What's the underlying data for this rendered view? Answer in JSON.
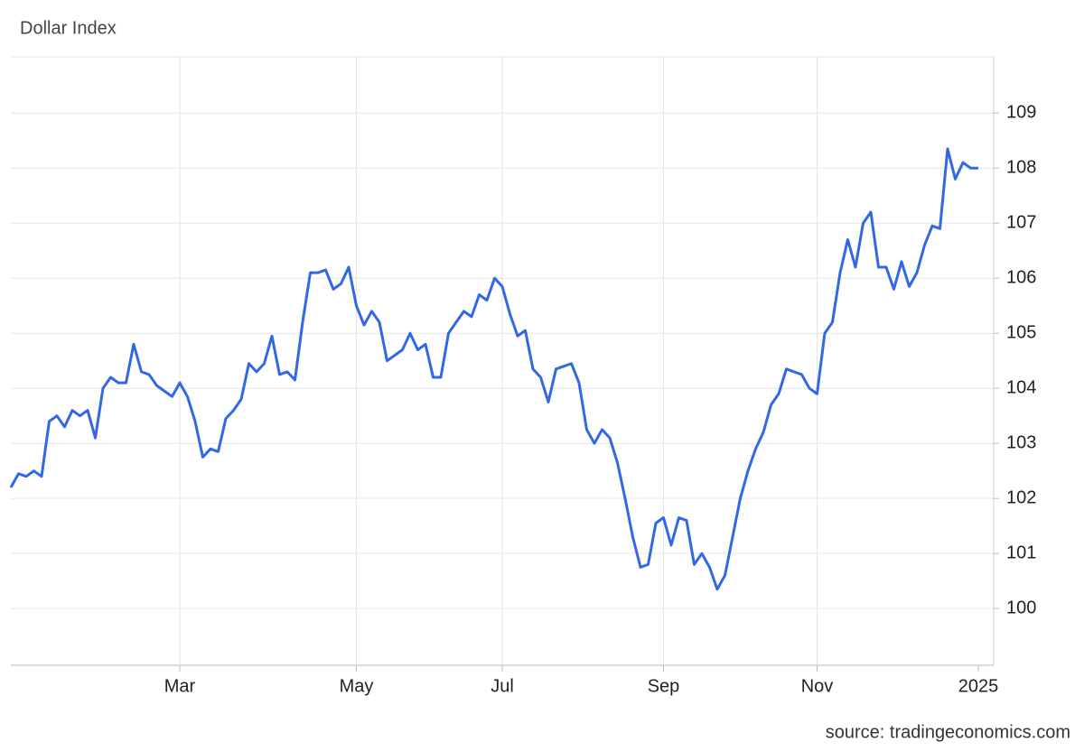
{
  "chart_data": {
    "type": "line",
    "title": "Dollar Index",
    "source": "source: tradingeconomics.com",
    "categories": [
      null,
      null,
      null,
      null,
      null,
      null,
      null,
      null,
      null,
      null,
      null,
      null,
      null,
      null,
      null,
      null,
      null,
      null,
      null,
      null,
      null,
      null,
      "Mar",
      null,
      null,
      null,
      null,
      null,
      null,
      null,
      null,
      null,
      null,
      null,
      null,
      null,
      null,
      null,
      null,
      null,
      null,
      null,
      null,
      null,
      null,
      "May",
      null,
      null,
      null,
      null,
      null,
      null,
      null,
      null,
      null,
      null,
      null,
      null,
      null,
      null,
      null,
      null,
      null,
      null,
      "Jul",
      null,
      null,
      null,
      null,
      null,
      null,
      null,
      null,
      null,
      null,
      null,
      null,
      null,
      null,
      null,
      null,
      null,
      null,
      null,
      null,
      "Sep",
      null,
      null,
      null,
      null,
      null,
      null,
      null,
      null,
      null,
      null,
      null,
      null,
      null,
      null,
      null,
      null,
      null,
      null,
      null,
      "Nov",
      null,
      null,
      null,
      null,
      null,
      null,
      null,
      null,
      null,
      null,
      null,
      null,
      null,
      null,
      null,
      null,
      null,
      null,
      null,
      null,
      "2025"
    ],
    "series": [
      {
        "name": "Dollar Index",
        "color": "#3268e6",
        "values": [
          102.2,
          102.45,
          102.4,
          102.5,
          102.4,
          103.4,
          103.5,
          103.3,
          103.6,
          103.5,
          103.6,
          103.1,
          104.0,
          104.2,
          104.1,
          104.1,
          104.8,
          104.3,
          104.25,
          104.05,
          103.95,
          103.85,
          104.1,
          103.85,
          103.4,
          102.75,
          102.9,
          102.85,
          103.45,
          103.6,
          103.8,
          104.45,
          104.3,
          104.45,
          104.95,
          104.25,
          104.3,
          104.15,
          105.2,
          106.1,
          106.1,
          106.15,
          105.8,
          105.9,
          106.2,
          105.5,
          105.15,
          105.4,
          105.2,
          104.5,
          104.6,
          104.7,
          105.0,
          104.7,
          104.8,
          104.2,
          104.2,
          105.0,
          105.2,
          105.4,
          105.3,
          105.7,
          105.6,
          106.0,
          105.85,
          105.35,
          104.95,
          105.05,
          104.35,
          104.2,
          103.75,
          104.35,
          104.4,
          104.45,
          104.1,
          103.25,
          103.0,
          103.25,
          103.1,
          102.65,
          102.0,
          101.3,
          100.75,
          100.8,
          101.55,
          101.65,
          101.15,
          101.65,
          101.6,
          100.8,
          101.0,
          100.75,
          100.35,
          100.6,
          101.3,
          102.0,
          102.5,
          102.9,
          103.2,
          103.7,
          103.9,
          104.35,
          104.3,
          104.25,
          104.0,
          103.9,
          105.0,
          105.2,
          106.1,
          106.7,
          106.2,
          107.0,
          107.2,
          106.2,
          106.2,
          105.8,
          106.3,
          105.85,
          106.1,
          106.6,
          106.95,
          106.9,
          108.35,
          107.8,
          108.1,
          108.0,
          108.0
        ]
      }
    ],
    "ylim": [
      98.97,
      110.02
    ],
    "yticks": [
      100,
      101,
      102,
      103,
      104,
      105,
      106,
      107,
      108,
      109
    ],
    "grid": true
  }
}
